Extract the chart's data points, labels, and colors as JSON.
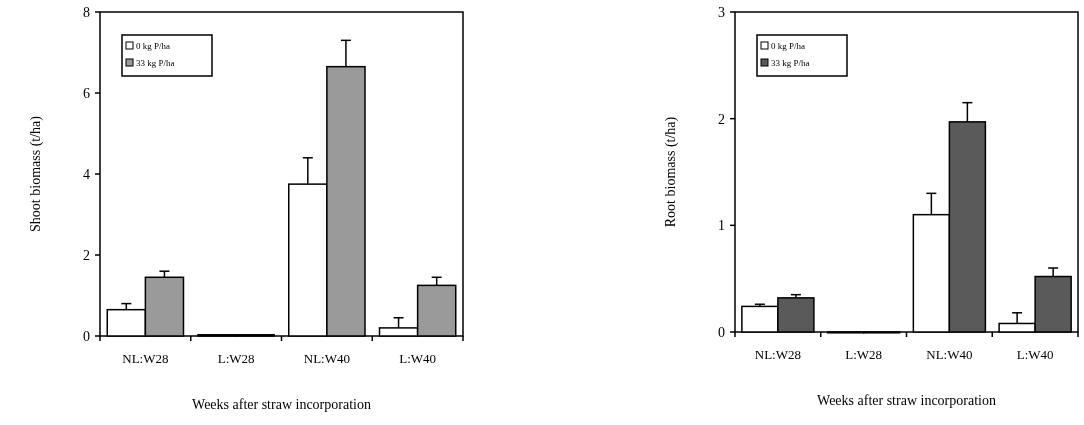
{
  "chart_data": [
    {
      "type": "bar",
      "categories": [
        "NL:W28",
        "L:W28",
        "NL:W40",
        "L:W40"
      ],
      "xlabel": "Weeks after straw incorporation",
      "ylabel": "Shoot biomass (t/ha)",
      "ylim": [
        0,
        8
      ],
      "yticks": [
        0,
        2,
        4,
        6,
        8
      ],
      "legend": "top left",
      "grid": false,
      "series": [
        {
          "name": "0 kg P/ha",
          "color": "#ffffff",
          "values": [
            0.65,
            0.03,
            3.75,
            0.2
          ],
          "errors": [
            0.15,
            null,
            0.65,
            0.25
          ]
        },
        {
          "name": "33 kg P/ha",
          "color": "#9a9a9a",
          "values": [
            1.45,
            0.03,
            6.65,
            1.25
          ],
          "errors": [
            0.15,
            null,
            0.65,
            0.2
          ]
        }
      ]
    },
    {
      "type": "bar",
      "categories": [
        "NL:W28",
        "L:W28",
        "NL:W40",
        "L:W40"
      ],
      "xlabel": "Weeks after straw incorporation",
      "ylabel": "Root biomass (t/ha)",
      "ylim": [
        0,
        3
      ],
      "yticks": [
        0,
        1,
        2,
        3
      ],
      "legend": "top left",
      "grid": false,
      "series": [
        {
          "name": "0 kg P/ha",
          "color": "#ffffff",
          "values": [
            0.24,
            0,
            1.1,
            0.08
          ],
          "errors": [
            0.02,
            null,
            0.2,
            0.1
          ]
        },
        {
          "name": "33 kg P/ha",
          "color": "#5a5a5a",
          "values": [
            0.32,
            0,
            1.97,
            0.52
          ],
          "errors": [
            0.03,
            null,
            0.18,
            0.08
          ]
        }
      ]
    }
  ]
}
